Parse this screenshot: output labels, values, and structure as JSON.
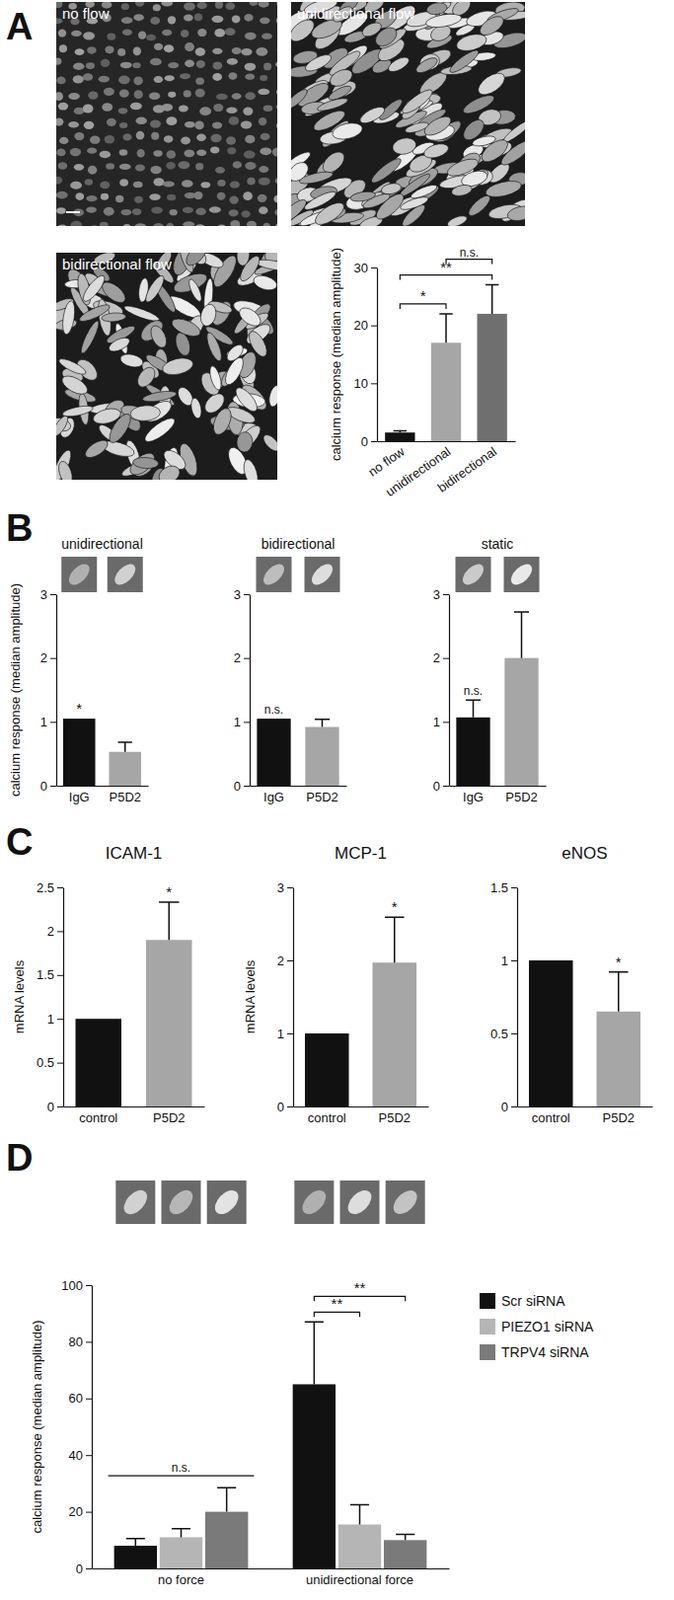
{
  "panel_labels": [
    "A",
    "B",
    "C",
    "D"
  ],
  "images": [
    {
      "label": "no flow"
    },
    {
      "label": "unidirectional flow"
    },
    {
      "label": "bidirectional flow"
    }
  ],
  "chart_data": [
    {
      "type": "bar",
      "y_label": "calcium response (median amplitude)",
      "categories": [
        "no flow",
        "unidirectional",
        "bidirectional"
      ],
      "values": [
        1.5,
        17,
        22
      ],
      "errors": [
        0.3,
        5,
        5
      ],
      "colors": [
        "#111111",
        "#a6a6a6",
        "#6f6f6f"
      ],
      "ylim": [
        0,
        30
      ],
      "yticks": [
        0,
        10,
        20,
        30
      ],
      "annotations": [
        {
          "text": "*",
          "between": [
            "no flow",
            "unidirectional"
          ]
        },
        {
          "text": "**",
          "between": [
            "no flow",
            "bidirectional"
          ]
        },
        {
          "text": "n.s.",
          "between": [
            "unidirectional",
            "bidirectional"
          ]
        }
      ]
    },
    {
      "type": "bar",
      "title": "unidirectional",
      "y_label": "calcium response (median amplitude)",
      "categories": [
        "IgG",
        "P5D2"
      ],
      "values": [
        1.05,
        0.53
      ],
      "errors": [
        null,
        0.15
      ],
      "colors": [
        "#111111",
        "#a6a6a6"
      ],
      "ylim": [
        0,
        3
      ],
      "yticks": [
        0,
        1,
        2,
        3
      ],
      "annotations": [
        {
          "text": "*",
          "over": "IgG"
        }
      ]
    },
    {
      "type": "bar",
      "title": "bidirectional",
      "categories": [
        "IgG",
        "P5D2"
      ],
      "values": [
        1.05,
        0.92
      ],
      "errors": [
        null,
        0.12
      ],
      "colors": [
        "#111111",
        "#a6a6a6"
      ],
      "ylim": [
        0,
        3
      ],
      "yticks": [
        0,
        1,
        2,
        3
      ],
      "annotations": [
        {
          "text": "n.s.",
          "over": "IgG"
        }
      ]
    },
    {
      "type": "bar",
      "title": "static",
      "categories": [
        "IgG",
        "P5D2"
      ],
      "values": [
        1.07,
        2.0
      ],
      "errors": [
        0.27,
        0.72
      ],
      "colors": [
        "#111111",
        "#a6a6a6"
      ],
      "ylim": [
        0,
        3
      ],
      "yticks": [
        0,
        1,
        2,
        3
      ],
      "annotations": [
        {
          "text": "n.s.",
          "over": "IgG"
        }
      ]
    },
    {
      "type": "bar",
      "title": "ICAM-1",
      "y_label": "mRNA levels",
      "categories": [
        "control",
        "P5D2"
      ],
      "values": [
        1,
        1.9
      ],
      "errors": [
        null,
        0.43
      ],
      "colors": [
        "#111111",
        "#a6a6a6"
      ],
      "ylim": [
        0,
        2.5
      ],
      "yticks": [
        0,
        0.5,
        1,
        1.5,
        2,
        2.5
      ],
      "annotations": [
        {
          "text": "*",
          "over": "P5D2"
        }
      ]
    },
    {
      "type": "bar",
      "title": "MCP-1",
      "y_label": "mRNA levels",
      "categories": [
        "control",
        "P5D2"
      ],
      "values": [
        1,
        1.97
      ],
      "errors": [
        null,
        0.62
      ],
      "colors": [
        "#111111",
        "#a6a6a6"
      ],
      "ylim": [
        0,
        3
      ],
      "yticks": [
        0,
        1,
        2,
        3
      ],
      "annotations": [
        {
          "text": "*",
          "over": "P5D2"
        }
      ]
    },
    {
      "type": "bar",
      "title": "eNOS",
      "categories": [
        "control",
        "P5D2"
      ],
      "values": [
        1,
        0.65
      ],
      "errors": [
        null,
        0.27
      ],
      "colors": [
        "#111111",
        "#a6a6a6"
      ],
      "ylim": [
        0,
        1.5
      ],
      "yticks": [
        0,
        0.5,
        1,
        1.5
      ],
      "annotations": [
        {
          "text": "*",
          "over": "P5D2"
        }
      ]
    },
    {
      "type": "bar",
      "y_label": "calcium response (median amplitude)",
      "categories": [
        "no force",
        "unidirectional force"
      ],
      "series": [
        {
          "name": "Scr siRNA",
          "color": "#111111",
          "values": [
            8,
            65
          ],
          "errors": [
            2.5,
            22
          ]
        },
        {
          "name": "PIEZO1 siRNA",
          "color": "#b5b5b5",
          "values": [
            11,
            15.5
          ],
          "errors": [
            3,
            7
          ]
        },
        {
          "name": "TRPV4 siRNA",
          "color": "#7a7a7a",
          "values": [
            20,
            10
          ],
          "errors": [
            8.5,
            2
          ]
        }
      ],
      "ylim": [
        0,
        100
      ],
      "yticks": [
        0,
        20,
        40,
        60,
        80,
        100
      ],
      "legend": "right",
      "annotations": [
        {
          "text": "n.s.",
          "over": "no force"
        },
        {
          "text": "**",
          "category": "unidirectional force",
          "between": [
            "Scr siRNA",
            "PIEZO1 siRNA"
          ]
        },
        {
          "text": "**",
          "category": "unidirectional force",
          "between": [
            "Scr siRNA",
            "TRPV4 siRNA"
          ]
        }
      ]
    }
  ]
}
